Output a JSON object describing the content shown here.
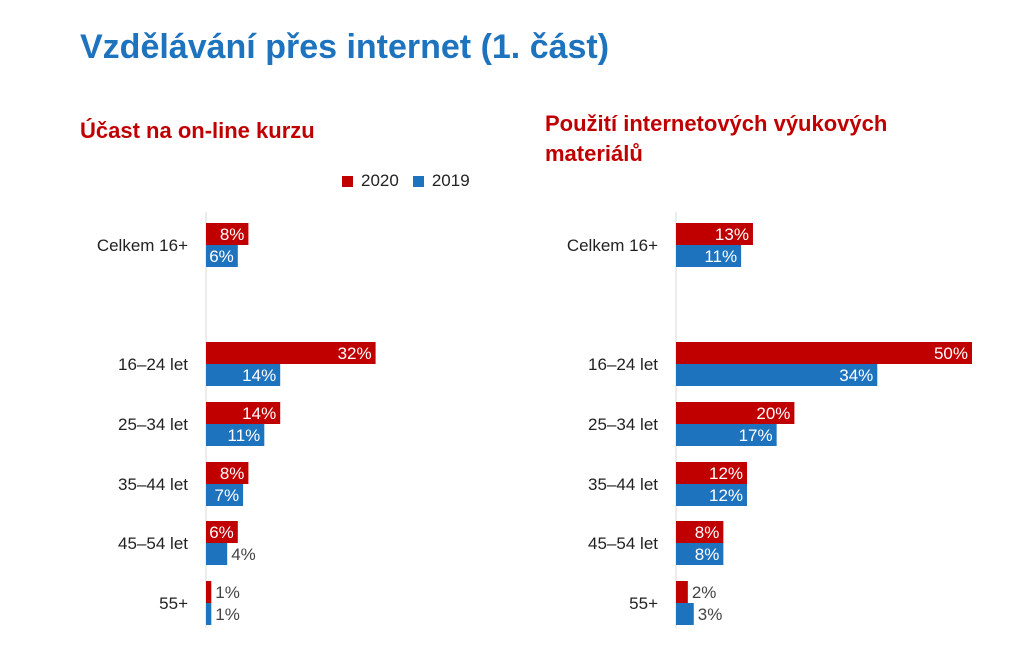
{
  "page": {
    "title": "Vzdělávání přes internet (1. část)"
  },
  "legend": {
    "items": [
      {
        "label": "2020",
        "color": "#c00000"
      },
      {
        "label": "2019",
        "color": "#1e73be"
      }
    ]
  },
  "chart_data": [
    {
      "type": "bar",
      "orientation": "horizontal",
      "title": "Účast na on-line kurzu",
      "categories": [
        "Celkem 16+",
        "16–24 let",
        "25–34 let",
        "35–44 let",
        "45–54 let",
        "55+"
      ],
      "series": [
        {
          "name": "2020",
          "color": "#c00000",
          "values": [
            8,
            32,
            14,
            8,
            6,
            1
          ]
        },
        {
          "name": "2019",
          "color": "#1e73be",
          "values": [
            6,
            14,
            11,
            7,
            4,
            1
          ]
        }
      ],
      "value_suffix": "%",
      "xlim": [
        0,
        55
      ],
      "grid": false,
      "legend": "top"
    },
    {
      "type": "bar",
      "orientation": "horizontal",
      "title": "Použití internetových výukových materiálů",
      "categories": [
        "Celkem 16+",
        "16–24 let",
        "25–34 let",
        "35–44 let",
        "45–54 let",
        "55+"
      ],
      "series": [
        {
          "name": "2020",
          "color": "#c00000",
          "values": [
            13,
            50,
            20,
            12,
            8,
            2
          ]
        },
        {
          "name": "2019",
          "color": "#1e73be",
          "values": [
            11,
            34,
            17,
            12,
            8,
            3
          ]
        }
      ],
      "value_suffix": "%",
      "xlim": [
        0,
        50
      ],
      "grid": false,
      "legend": "none"
    }
  ]
}
